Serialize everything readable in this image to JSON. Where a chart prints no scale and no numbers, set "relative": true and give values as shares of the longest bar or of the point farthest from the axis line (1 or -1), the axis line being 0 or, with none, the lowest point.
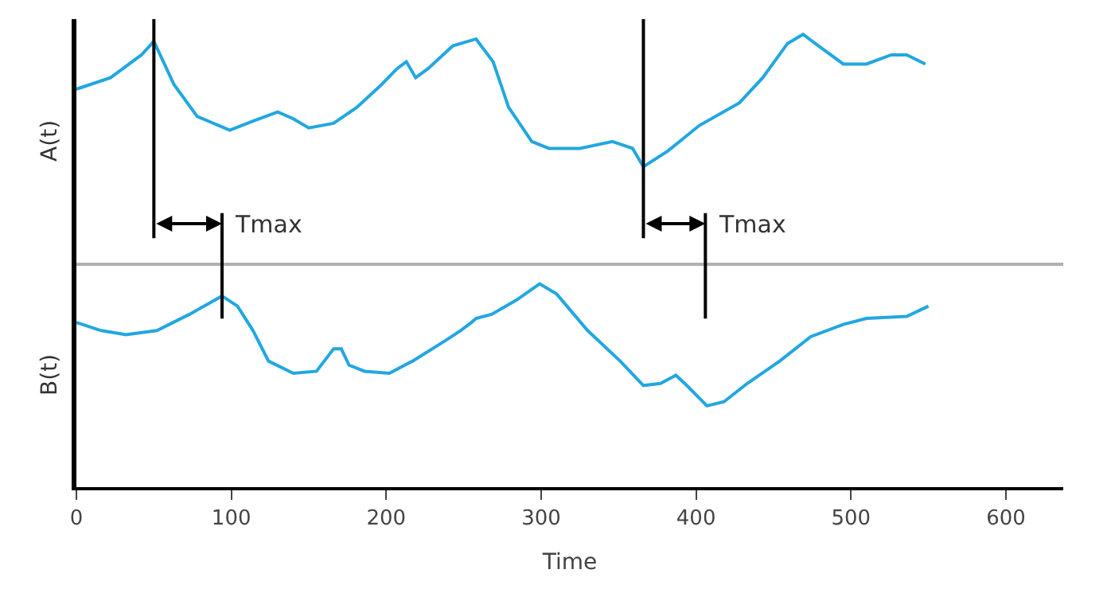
{
  "chart_data": [
    {
      "type": "line",
      "relative": true,
      "ylabel": "A(t)",
      "xlim": [
        0,
        637
      ],
      "xticks": [
        0,
        100,
        200,
        300,
        400,
        500,
        600
      ],
      "tick_labels": false,
      "x": [
        0,
        22,
        42,
        50,
        63,
        78,
        99,
        114,
        130,
        140,
        150,
        166,
        181,
        197,
        207,
        213,
        219,
        227,
        243,
        258,
        269,
        279,
        294,
        305,
        325,
        346,
        359,
        366,
        382,
        402,
        428,
        443,
        459,
        469,
        479,
        495,
        510,
        526,
        536,
        548
      ],
      "series": [
        {
          "color": "#22a7e0",
          "values": [
            0.76,
            0.81,
            0.91,
            0.97,
            0.78,
            0.64,
            0.58,
            0.62,
            0.66,
            0.63,
            0.59,
            0.61,
            0.68,
            0.78,
            0.85,
            0.88,
            0.81,
            0.85,
            0.95,
            0.98,
            0.88,
            0.68,
            0.53,
            0.5,
            0.5,
            0.53,
            0.5,
            0.42,
            0.49,
            0.6,
            0.7,
            0.81,
            0.96,
            1,
            0.95,
            0.87,
            0.87,
            0.91,
            0.91,
            0.87
          ]
        }
      ],
      "ref_lines": [
        {
          "axis": "x",
          "value": 50
        },
        {
          "axis": "x",
          "value": 366
        }
      ],
      "annotations": [
        "Tmax",
        "Tmax"
      ]
    },
    {
      "type": "line",
      "relative": true,
      "ylabel": "B(t)",
      "xlabel": "Time",
      "xlim": [
        0,
        637
      ],
      "xticks": [
        0,
        100,
        200,
        300,
        400,
        500,
        600
      ],
      "tick_labels": "x",
      "x": [
        0,
        16,
        32,
        52,
        73,
        94,
        104,
        114,
        124,
        140,
        155,
        160,
        166,
        171,
        176,
        186,
        202,
        217,
        238,
        248,
        255,
        258,
        268,
        284,
        299,
        310,
        330,
        351,
        366,
        377,
        387,
        394,
        407,
        418,
        433,
        454,
        474,
        495,
        510,
        536,
        550
      ],
      "series": [
        {
          "color": "#22a7e0",
          "values": [
            0.81,
            0.77,
            0.75,
            0.77,
            0.85,
            0.94,
            0.89,
            0.77,
            0.62,
            0.56,
            0.57,
            0.62,
            0.68,
            0.68,
            0.6,
            0.57,
            0.56,
            0.62,
            0.72,
            0.77,
            0.81,
            0.83,
            0.85,
            0.92,
            1,
            0.95,
            0.77,
            0.62,
            0.5,
            0.51,
            0.55,
            0.5,
            0.4,
            0.42,
            0.51,
            0.62,
            0.74,
            0.8,
            0.83,
            0.84,
            0.89
          ]
        }
      ],
      "ref_lines": [
        {
          "axis": "x",
          "value": 94
        },
        {
          "axis": "x",
          "value": 406
        }
      ]
    }
  ]
}
